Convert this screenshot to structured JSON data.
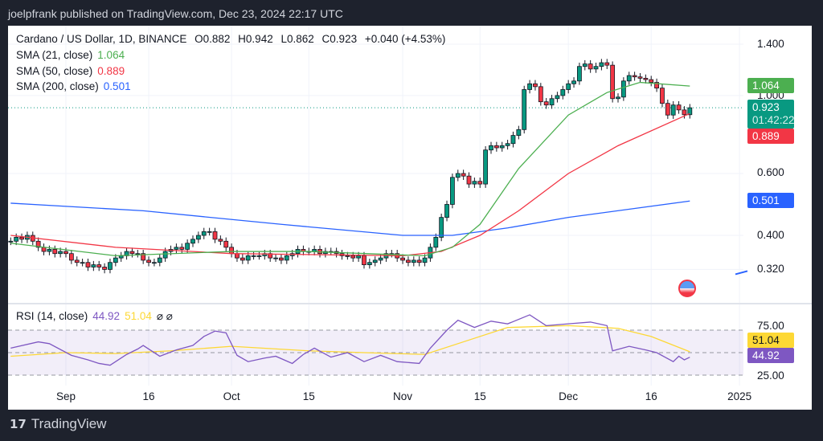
{
  "header": {
    "published": "joelpfrank published on TradingView.com, Dec 23, 2024 22:17 UTC"
  },
  "legend": {
    "symbol": "Cardano / US Dollar, 1D, BINANCE",
    "open": "O0.882",
    "high": "H0.942",
    "low": "L0.862",
    "close": "C0.923",
    "change": "+0.040 (+4.53%)",
    "sma21_label": "SMA (21, close)",
    "sma21_value": "1.064",
    "sma50_label": "SMA (50, close)",
    "sma50_value": "0.889",
    "sma200_label": "SMA (200, close)",
    "sma200_value": "0.501",
    "rsi_label": "RSI (14, close)",
    "rsi_value": "44.92",
    "rsi_ma_value": "51.04"
  },
  "colors": {
    "up": "#089981",
    "down": "#f23645",
    "sma21": "#4caf50",
    "sma50": "#f23645",
    "sma200": "#2962ff",
    "rsi": "#7e57c2",
    "rsi_ma": "#fdd835"
  },
  "chart_data": {
    "type": "candlestick",
    "price_scale": "log",
    "price_ticks": [
      "1.400",
      "1.000",
      "0.600",
      "0.400",
      "0.320"
    ],
    "rsi_ticks": [
      "75.00",
      "25.00"
    ],
    "date_ticks": [
      {
        "label": "Sep",
        "date": "2024-09-01"
      },
      {
        "label": "16",
        "date": "2024-09-16"
      },
      {
        "label": "Oct",
        "date": "2024-10-01"
      },
      {
        "label": "15",
        "date": "2024-10-15"
      },
      {
        "label": "Nov",
        "date": "2024-11-01"
      },
      {
        "label": "15",
        "date": "2024-11-15"
      },
      {
        "label": "Dec",
        "date": "2024-12-01"
      },
      {
        "label": "16",
        "date": "2024-12-16"
      },
      {
        "label": "2025",
        "date": "2025-01-01"
      }
    ],
    "first_date": "2024-08-22",
    "closes": [
      0.385,
      0.395,
      0.39,
      0.4,
      0.385,
      0.37,
      0.36,
      0.365,
      0.355,
      0.36,
      0.355,
      0.34,
      0.335,
      0.335,
      0.325,
      0.33,
      0.325,
      0.32,
      0.335,
      0.345,
      0.35,
      0.36,
      0.355,
      0.355,
      0.34,
      0.335,
      0.335,
      0.345,
      0.36,
      0.365,
      0.37,
      0.365,
      0.38,
      0.39,
      0.4,
      0.41,
      0.41,
      0.39,
      0.385,
      0.37,
      0.355,
      0.345,
      0.34,
      0.35,
      0.35,
      0.35,
      0.355,
      0.345,
      0.345,
      0.34,
      0.35,
      0.355,
      0.365,
      0.36,
      0.36,
      0.365,
      0.355,
      0.36,
      0.36,
      0.355,
      0.35,
      0.35,
      0.345,
      0.35,
      0.33,
      0.335,
      0.34,
      0.345,
      0.355,
      0.355,
      0.345,
      0.34,
      0.335,
      0.34,
      0.335,
      0.345,
      0.37,
      0.395,
      0.45,
      0.49,
      0.585,
      0.6,
      0.59,
      0.56,
      0.57,
      0.56,
      0.7,
      0.72,
      0.71,
      0.72,
      0.73,
      0.77,
      0.8,
      1.04,
      1.08,
      1.06,
      0.96,
      0.94,
      0.98,
      1.0,
      1.04,
      1.08,
      1.1,
      1.21,
      1.23,
      1.19,
      1.21,
      1.24,
      1.22,
      0.98,
      0.99,
      1.1,
      1.14,
      1.13,
      1.12,
      1.11,
      1.09,
      1.05,
      0.95,
      0.88,
      0.94,
      0.91,
      0.882,
      0.923
    ],
    "sma21": [
      [
        "2024-08-22",
        0.38
      ],
      [
        "2024-09-10",
        0.35
      ],
      [
        "2024-10-01",
        0.36
      ],
      [
        "2024-10-15",
        0.36
      ],
      [
        "2024-11-05",
        0.35
      ],
      [
        "2024-11-10",
        0.37
      ],
      [
        "2024-11-15",
        0.43
      ],
      [
        "2024-11-22",
        0.62
      ],
      [
        "2024-12-01",
        0.88
      ],
      [
        "2024-12-08",
        1.02
      ],
      [
        "2024-12-14",
        1.09
      ],
      [
        "2024-12-23",
        1.064
      ]
    ],
    "sma50": [
      [
        "2024-08-22",
        0.4
      ],
      [
        "2024-09-10",
        0.37
      ],
      [
        "2024-10-01",
        0.355
      ],
      [
        "2024-11-01",
        0.35
      ],
      [
        "2024-11-08",
        0.36
      ],
      [
        "2024-11-15",
        0.4
      ],
      [
        "2024-11-22",
        0.47
      ],
      [
        "2024-12-01",
        0.6
      ],
      [
        "2024-12-10",
        0.72
      ],
      [
        "2024-12-23",
        0.889
      ]
    ],
    "sma200": [
      [
        "2024-08-22",
        0.494
      ],
      [
        "2024-09-15",
        0.47
      ],
      [
        "2024-10-10",
        0.43
      ],
      [
        "2024-11-01",
        0.4
      ],
      [
        "2024-11-10",
        0.4
      ],
      [
        "2024-11-20",
        0.42
      ],
      [
        "2024-12-01",
        0.45
      ],
      [
        "2024-12-23",
        0.501
      ]
    ],
    "rsi": [
      [
        "2024-08-22",
        55
      ],
      [
        "2024-08-27",
        62
      ],
      [
        "2024-08-29",
        60
      ],
      [
        "2024-09-02",
        47
      ],
      [
        "2024-09-05",
        42
      ],
      [
        "2024-09-07",
        38
      ],
      [
        "2024-09-09",
        36
      ],
      [
        "2024-09-12",
        48
      ],
      [
        "2024-09-14",
        54
      ],
      [
        "2024-09-15",
        58
      ],
      [
        "2024-09-18",
        46
      ],
      [
        "2024-09-21",
        53
      ],
      [
        "2024-09-24",
        58
      ],
      [
        "2024-09-26",
        68
      ],
      [
        "2024-09-28",
        74
      ],
      [
        "2024-09-30",
        72
      ],
      [
        "2024-10-02",
        47
      ],
      [
        "2024-10-04",
        40
      ],
      [
        "2024-10-07",
        44
      ],
      [
        "2024-10-09",
        46
      ],
      [
        "2024-10-12",
        38
      ],
      [
        "2024-10-14",
        48
      ],
      [
        "2024-10-16",
        55
      ],
      [
        "2024-10-19",
        45
      ],
      [
        "2024-10-22",
        50
      ],
      [
        "2024-10-25",
        40
      ],
      [
        "2024-10-28",
        47
      ],
      [
        "2024-10-31",
        40
      ],
      [
        "2024-11-04",
        38
      ],
      [
        "2024-11-06",
        55
      ],
      [
        "2024-11-09",
        75
      ],
      [
        "2024-11-11",
        86
      ],
      [
        "2024-11-14",
        78
      ],
      [
        "2024-11-17",
        85
      ],
      [
        "2024-11-20",
        82
      ],
      [
        "2024-11-24",
        92
      ],
      [
        "2024-11-27",
        80
      ],
      [
        "2024-12-01",
        82
      ],
      [
        "2024-12-05",
        84
      ],
      [
        "2024-12-08",
        80
      ],
      [
        "2024-12-09",
        52
      ],
      [
        "2024-12-12",
        57
      ],
      [
        "2024-12-15",
        53
      ],
      [
        "2024-12-17",
        50
      ],
      [
        "2024-12-20",
        40
      ],
      [
        "2024-12-21",
        46
      ],
      [
        "2024-12-22",
        42
      ],
      [
        "2024-12-23",
        44.92
      ]
    ],
    "rsi_ma": [
      [
        "2024-08-22",
        46
      ],
      [
        "2024-09-01",
        50
      ],
      [
        "2024-09-10",
        49
      ],
      [
        "2024-09-20",
        52
      ],
      [
        "2024-10-01",
        57
      ],
      [
        "2024-10-15",
        52
      ],
      [
        "2024-10-25",
        50
      ],
      [
        "2024-11-05",
        48
      ],
      [
        "2024-11-12",
        62
      ],
      [
        "2024-11-20",
        78
      ],
      [
        "2024-12-01",
        80
      ],
      [
        "2024-12-10",
        77
      ],
      [
        "2024-12-16",
        68
      ],
      [
        "2024-12-23",
        51.04
      ]
    ],
    "last_price": "0.923",
    "countdown": "01:42:22"
  },
  "footer": {
    "brand": "TradingView"
  }
}
